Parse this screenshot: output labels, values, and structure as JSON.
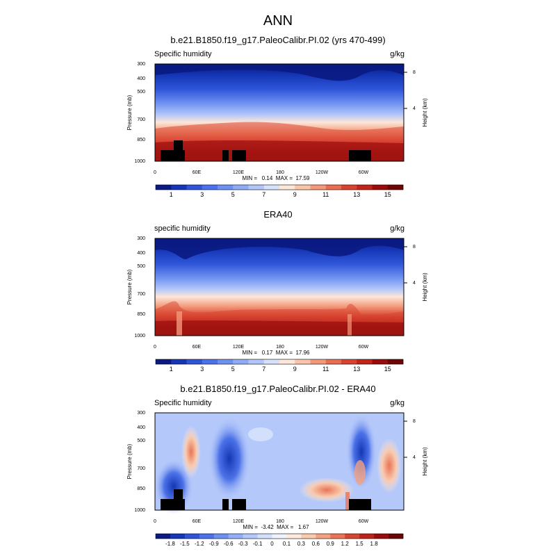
{
  "title": "ANN",
  "chart_data": [
    {
      "type": "heatmap",
      "title": "b.e21.B1850.f19_g17.PaleoCalibr.PI.02 (yrs 470-499)",
      "left_label": "Specific humidity",
      "units": "g/kg",
      "ylabel": "Pressure (mb)",
      "ylabel_right": "Height (km)",
      "y_ticks": [
        "300",
        "400",
        "500",
        "700",
        "850",
        "1000"
      ],
      "y_ticks_right": [
        "8",
        "4"
      ],
      "x_ticks": [
        "0",
        "60E",
        "120E",
        "180",
        "120W",
        "60W"
      ],
      "xlim": [
        0,
        360
      ],
      "ylim": [
        1000,
        300
      ],
      "stats": "MIN =   0.14  MAX =  17.59",
      "colorbar_labels": [
        "1",
        "3",
        "5",
        "7",
        "9",
        "11",
        "13",
        "15"
      ]
    },
    {
      "type": "heatmap",
      "title": "ERA40",
      "left_label": "specific humidity",
      "units": "g/kg",
      "ylabel": "Pressure (mb)",
      "ylabel_right": "Height (km)",
      "y_ticks": [
        "300",
        "400",
        "500",
        "700",
        "850",
        "1000"
      ],
      "y_ticks_right": [
        "8",
        "4"
      ],
      "x_ticks": [
        "0",
        "60E",
        "120E",
        "180",
        "120W",
        "60W"
      ],
      "xlim": [
        0,
        360
      ],
      "ylim": [
        1000,
        300
      ],
      "stats": "MIN =   0.17  MAX =  17.96",
      "colorbar_labels": [
        "1",
        "3",
        "5",
        "7",
        "9",
        "11",
        "13",
        "15"
      ]
    },
    {
      "type": "heatmap",
      "title": "b.e21.B1850.f19_g17.PaleoCalibr.PI.02 - ERA40",
      "left_label": "Specific humidity",
      "units": "g/kg",
      "ylabel": "Pressure (mb)",
      "ylabel_right": "Height (km)",
      "y_ticks": [
        "300",
        "400",
        "500",
        "700",
        "850",
        "1000"
      ],
      "y_ticks_right": [
        "8",
        "4"
      ],
      "x_ticks": [
        "0",
        "60E",
        "120E",
        "180",
        "120W",
        "60W"
      ],
      "xlim": [
        0,
        360
      ],
      "ylim": [
        1000,
        300
      ],
      "stats": "MIN =  -3.42  MAX =   1.67",
      "colorbar_labels": [
        "-1.8",
        "-1.5",
        "-1.2",
        "-0.9",
        "-0.6",
        "-0.3",
        "-0.1",
        "0",
        "0.1",
        "0.3",
        "0.6",
        "0.9",
        "1.2",
        "1.5",
        "1.8"
      ]
    }
  ],
  "palette": [
    "#0a1a82",
    "#1537b7",
    "#2f55d8",
    "#4b72ea",
    "#6d90f1",
    "#8fabf6",
    "#b2c6fa",
    "#d6e2fc",
    "#fde7d8",
    "#f9c4a9",
    "#f3997a",
    "#e86d51",
    "#d8432f",
    "#c12418",
    "#9a0c0c",
    "#6e0606"
  ],
  "diff_palette": [
    "#0a1a82",
    "#1536b5",
    "#2f54d6",
    "#4c72e8",
    "#6e91f0",
    "#91aef6",
    "#b4c8fa",
    "#d3e0fb",
    "#eef3fe",
    "#fde9dd",
    "#f9caae",
    "#f2a181",
    "#e87456",
    "#d54632",
    "#bc231a",
    "#960d0d",
    "#6a0505"
  ]
}
